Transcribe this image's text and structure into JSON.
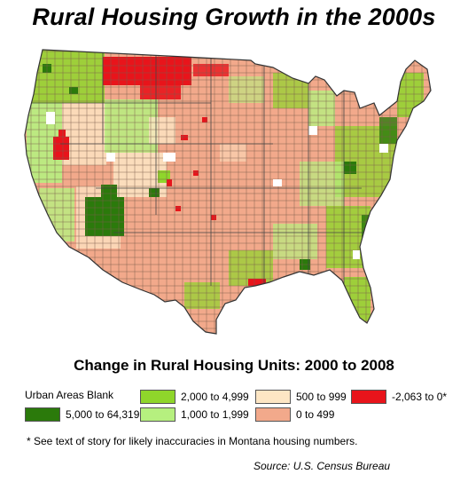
{
  "title": "Rural Housing Growth in the 2000s",
  "legend": {
    "title": "Change in Rural Housing Units: 2000 to 2008",
    "urban_note": "Urban Areas Blank",
    "items": [
      {
        "label": "5,000 to 64,319",
        "color": "#2b7a0b"
      },
      {
        "label": "2,000 to 4,999",
        "color": "#8fd62b"
      },
      {
        "label": "1,000 to 1,999",
        "color": "#b6f07f"
      },
      {
        "label": "500 to 999",
        "color": "#fde6c4"
      },
      {
        "label": "0 to 499",
        "color": "#f2a98b"
      },
      {
        "label": "-2,063 to 0*",
        "color": "#e8141b"
      }
    ]
  },
  "footnote": "* See text of story for likely inaccuracies in Montana housing numbers.",
  "source": "Source: U.S. Census Bureau",
  "map": {
    "region": "Contiguous United States",
    "unit": "county",
    "base_color": "#f2a98b",
    "border_color": "#555555"
  }
}
